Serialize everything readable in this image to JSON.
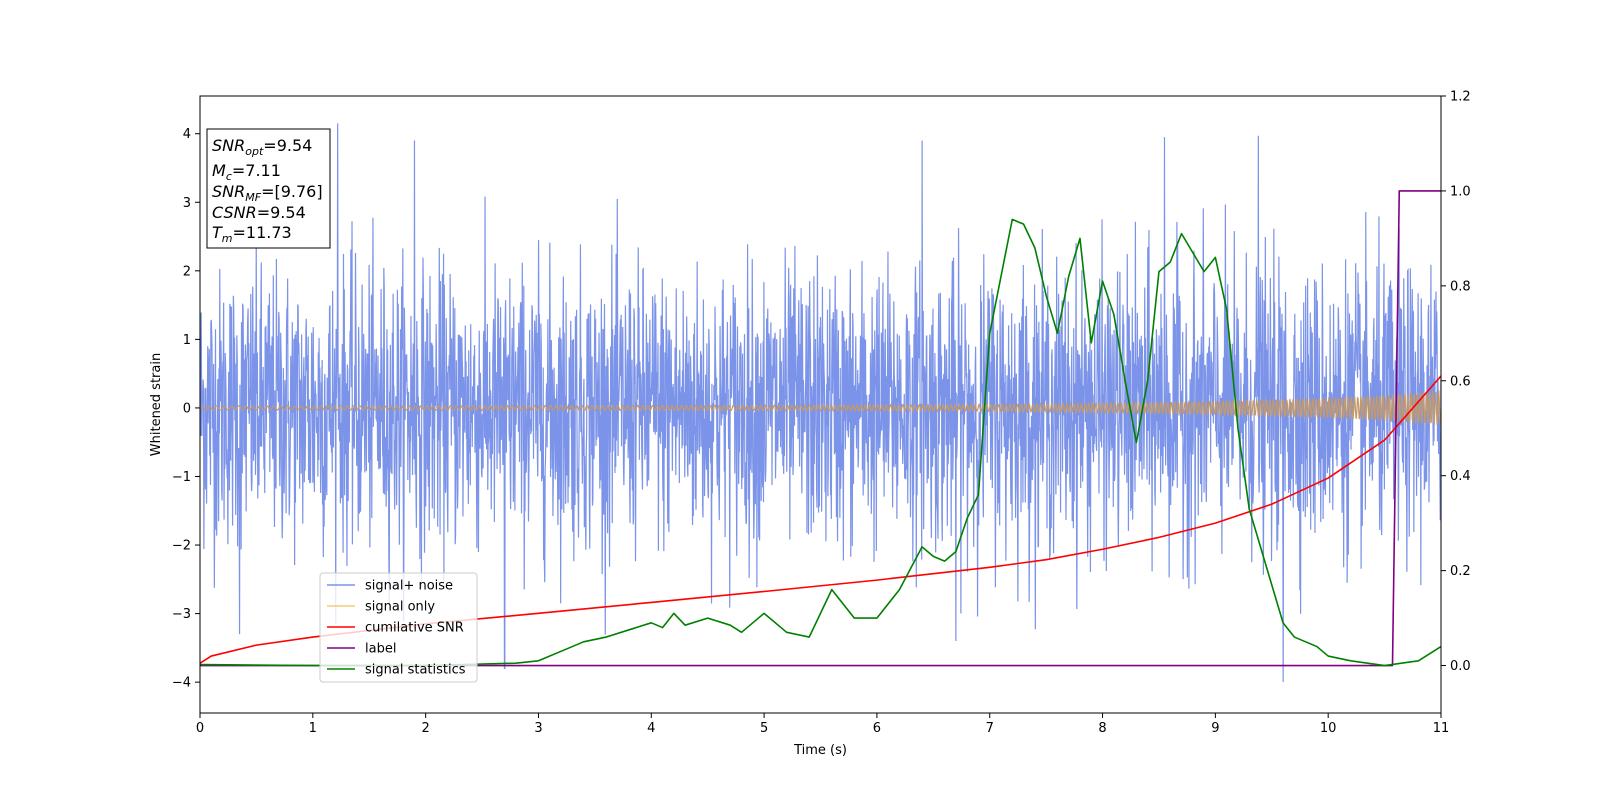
{
  "chart_data": {
    "type": "line",
    "xlabel": "Time (s)",
    "ylabel": "Whitened strain",
    "xlim": [
      0,
      11
    ],
    "ylim_left": [
      -4.45,
      4.55
    ],
    "ylim_right": [
      -0.1,
      1.2
    ],
    "x_ticks": [
      "0",
      "1",
      "2",
      "3",
      "4",
      "5",
      "6",
      "7",
      "8",
      "9",
      "10",
      "11"
    ],
    "y_ticks_left": [
      "−4",
      "−3",
      "−2",
      "−1",
      "0",
      "1",
      "2",
      "3",
      "4"
    ],
    "y_ticks_right": [
      "0.0",
      "0.2",
      "0.4",
      "0.6",
      "0.8",
      "1.0",
      "1.2"
    ],
    "annotation": {
      "lines": [
        {
          "base": "SNR",
          "sub": "opt",
          "rest": "=9.54"
        },
        {
          "base": "M",
          "sub": "c",
          "rest": "=7.11"
        },
        {
          "base": "SNR",
          "sub": "MF",
          "rest": "=[9.76]"
        },
        {
          "base": "CSNR",
          "sub": "",
          "rest": "=9.54"
        },
        {
          "base": "T",
          "sub": "m",
          "rest": "=11.73"
        }
      ]
    },
    "legend": {
      "position": "lower-left",
      "entries": [
        {
          "label": "signal+ noise",
          "color": "#7b93e8"
        },
        {
          "label": "signal only",
          "color": "#f7c97a"
        },
        {
          "label": "cumilative SNR",
          "color": "#ff0000"
        },
        {
          "label": "label",
          "color": "#800080"
        },
        {
          "label": "signal statistics",
          "color": "#008000"
        }
      ]
    },
    "series": [
      {
        "name": "signal+ noise",
        "axis": "left",
        "color": "#7b93e8",
        "noise_band": {
          "typical_abs": 2.5,
          "peaks": [
            [
              1.22,
              4.15
            ],
            [
              1.9,
              3.9
            ],
            [
              6.4,
              3.9
            ],
            [
              8.55,
              3.95
            ],
            [
              9.38,
              3.97
            ],
            [
              9.6,
              -4.0
            ],
            [
              2.7,
              -3.8
            ],
            [
              0.35,
              -3.3
            ],
            [
              6.7,
              -3.4
            ]
          ]
        }
      },
      {
        "name": "signal only",
        "axis": "left",
        "color": "#f7c97a",
        "envelope": {
          "x": [
            0,
            5,
            7,
            8,
            9,
            10,
            10.5,
            11
          ],
          "amp": [
            0.03,
            0.04,
            0.05,
            0.07,
            0.1,
            0.15,
            0.19,
            0.26
          ]
        }
      },
      {
        "name": "cumilative SNR",
        "axis": "right",
        "color": "#ff0000",
        "x": [
          0,
          0.1,
          0.5,
          1,
          2,
          3,
          4,
          5,
          6,
          7,
          7.5,
          8,
          8.5,
          9,
          9.5,
          10,
          10.5,
          11
        ],
        "y": [
          0.005,
          0.02,
          0.043,
          0.06,
          0.088,
          0.11,
          0.133,
          0.156,
          0.18,
          0.207,
          0.223,
          0.245,
          0.27,
          0.3,
          0.34,
          0.395,
          0.475,
          0.61
        ]
      },
      {
        "name": "label",
        "axis": "right",
        "color": "#800080",
        "x": [
          0,
          10.57,
          10.63,
          11
        ],
        "y": [
          0,
          0,
          1,
          1
        ]
      },
      {
        "name": "signal statistics",
        "axis": "right",
        "color": "#008000",
        "x": [
          0,
          1,
          2,
          2.5,
          2.8,
          3,
          3.2,
          3.4,
          3.6,
          3.8,
          4,
          4.1,
          4.2,
          4.3,
          4.5,
          4.7,
          4.8,
          5,
          5.2,
          5.4,
          5.6,
          5.8,
          6,
          6.2,
          6.4,
          6.5,
          6.6,
          6.7,
          6.8,
          6.9,
          7,
          7.1,
          7.2,
          7.3,
          7.4,
          7.5,
          7.6,
          7.7,
          7.8,
          7.9,
          8,
          8.1,
          8.2,
          8.3,
          8.4,
          8.5,
          8.6,
          8.7,
          8.8,
          8.9,
          9,
          9.1,
          9.2,
          9.3,
          9.4,
          9.5,
          9.6,
          9.7,
          9.9,
          10,
          10.2,
          10.5,
          10.8,
          11
        ],
        "y": [
          0.002,
          0,
          0,
          0.003,
          0.005,
          0.01,
          0.03,
          0.05,
          0.06,
          0.075,
          0.09,
          0.08,
          0.11,
          0.085,
          0.1,
          0.085,
          0.07,
          0.11,
          0.07,
          0.06,
          0.16,
          0.1,
          0.1,
          0.16,
          0.25,
          0.23,
          0.22,
          0.24,
          0.31,
          0.36,
          0.7,
          0.82,
          0.94,
          0.93,
          0.88,
          0.78,
          0.7,
          0.82,
          0.9,
          0.68,
          0.81,
          0.74,
          0.6,
          0.47,
          0.6,
          0.83,
          0.85,
          0.91,
          0.87,
          0.83,
          0.86,
          0.75,
          0.5,
          0.33,
          0.25,
          0.17,
          0.09,
          0.06,
          0.04,
          0.02,
          0.01,
          0,
          0.01,
          0.04
        ]
      }
    ]
  }
}
